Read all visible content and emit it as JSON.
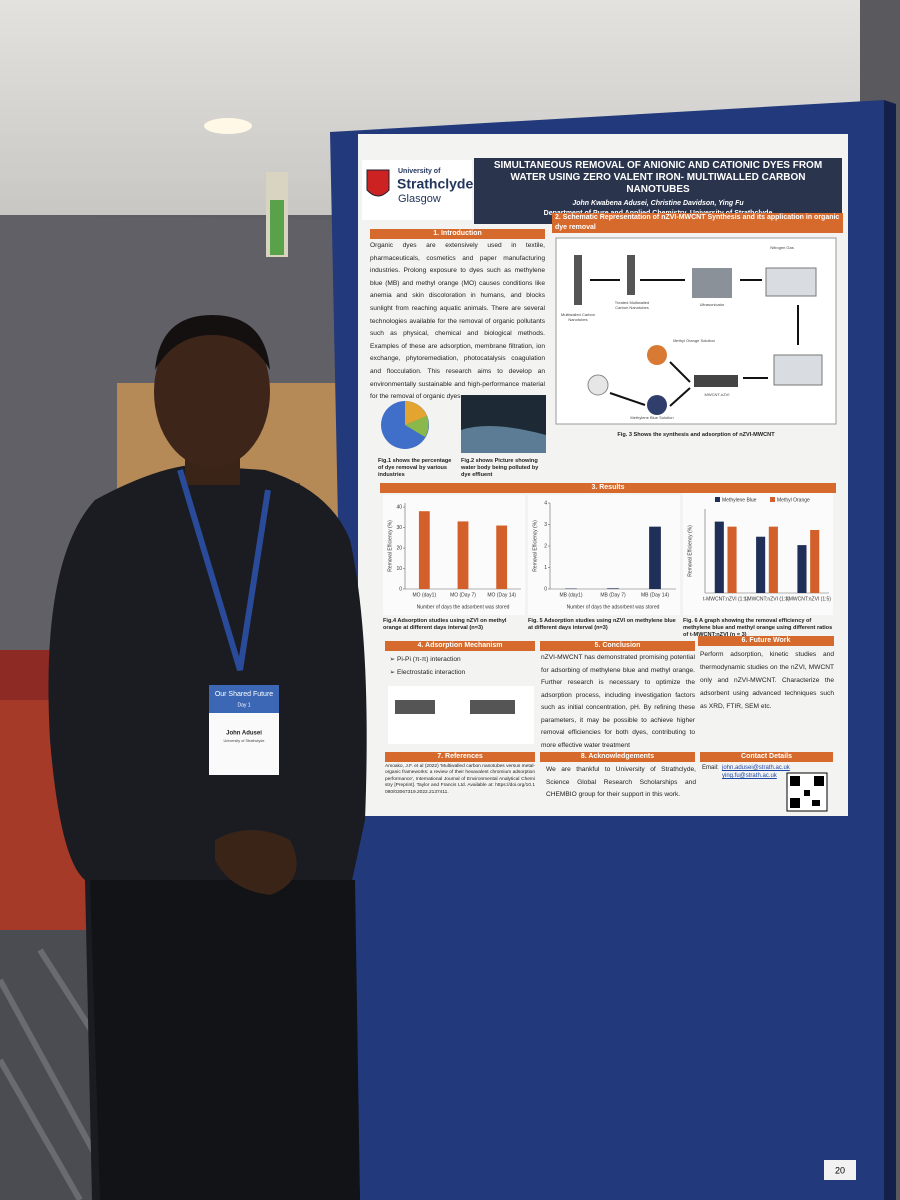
{
  "poster": {
    "university": [
      "University of",
      "Strathclyde",
      "Glasgow"
    ],
    "title": "SIMULTANEOUS REMOVAL OF ANIONIC AND CATIONIC DYES FROM WATER USING ZERO VALENT IRON- MULTIWALLED CARBON NANOTUBES",
    "authors": "John Kwabena Adusei, Christine Davidson, Ying Fu",
    "affiliation": "Department of Pure and Applied Chemistry, University of Strathclyde",
    "introduction": {
      "heading": "1. Introduction",
      "body": "Organic dyes are extensively used in textile, pharmaceuticals, cosmetics and paper manufacturing industries. Prolong exposure to dyes such as methylene blue (MB) and methyl orange (MO) causes conditions like anemia and skin discoloration in humans, and blocks sunlight from reaching aquatic animals. There are several technologies available for the removal of organic pollutants such as physical, chemical and biological methods. Examples of these are adsorption, membrane filtration, ion exchange, phytoremediation, photocatalysis coagulation and flocculation. This research aims to develop an environmentally sustainable and high-performance material for the removal of organic dyes",
      "fig1_caption": "Fig.1 shows the percentage of dye removal by various industries",
      "fig2_caption": "Fig.2 shows Picture showing water body being polluted by dye effluent"
    },
    "schematic": {
      "heading": "2. Schematic Representation of nZVI-MWCNT Synthesis and its application in organic dye removal",
      "labels": [
        "Multiwalled Carbon Nanotubes",
        "Treated Multiwalled Carbon Nanotubes",
        "Ultrasonicator",
        "Nitrogen Gas",
        "Methyl Orange Solution",
        "MWCNT-nZVI",
        "Methylene Blue Solution"
      ],
      "caption": "Fig. 3 Shows the synthesis and adsorption of nZVI-MWCNT"
    },
    "results": {
      "heading": "3. Results",
      "charts": [
        {
          "type": "bar",
          "ylabel": "Removal Efficiency (%)",
          "xlabel": "Number of days the adsorbent was stored",
          "categories": [
            "MO (day1)",
            "MO (Day 7)",
            "MO (Day 14)"
          ],
          "values": [
            38,
            33,
            31
          ],
          "color": "#d3602a",
          "ylim": [
            0,
            42
          ],
          "yticks": [
            0,
            10,
            20,
            30,
            40
          ],
          "caption": "Fig.4 Adsorption studies using nZVI on methyl orange at different days interval (n=3)"
        },
        {
          "type": "bar",
          "ylabel": "Removal Efficiency (%)",
          "xlabel": "Number of days the adsorbent was stored",
          "categories": [
            "MB (day1)",
            "MB (Day 7)",
            "MB (Day 14)"
          ],
          "values": [
            0.02,
            0.03,
            2.9
          ],
          "color": "#1f2f57",
          "ylim": [
            0,
            4
          ],
          "yticks": [
            0,
            1,
            2,
            3,
            4
          ],
          "caption": "Fig. 5 Adsorption studies using nZVI on methylene blue at different days interval (n=3)"
        },
        {
          "type": "bar",
          "ylabel": "Removal Efficiency (%)",
          "categories": [
            "t-MWCNT:nZVI (1:1)",
            "t-MWCNT:nZVI (1:3)",
            "t-MWCNT:nZVI (1:5)"
          ],
          "series": [
            {
              "name": "Methylene Blue",
              "color": "#1f2f57",
              "values": [
                85,
                67,
                57
              ]
            },
            {
              "name": "Methyl Orange",
              "color": "#d3602a",
              "values": [
                79,
                79,
                75
              ]
            }
          ],
          "ylim": [
            0,
            100
          ],
          "caption": "Fig. 6 A graph showing the removal efficiency of methylene blue and methyl orange using different ratios of t-MWCNT:nZVI (n = 3)"
        }
      ]
    },
    "mechanism": {
      "heading": "4. Adsorption Mechanism",
      "items": [
        "Pi-Pi (π-π) interaction",
        "Electrostatic interaction"
      ]
    },
    "conclusion": {
      "heading": "5. Conclusion",
      "body": "nZVI-MWCNT has demonstrated promising potential for adsorbing of methylene blue and methyl orange. Further research is necessary to optimize the adsorption process, including investigation factors such as initial concentration, pH. By refining these parameters, it may be possible to achieve higher removal efficiencies for both dyes, contributing to more effective water treatment"
    },
    "future_work": {
      "heading": "6. Future Work",
      "body": "Perform adsorption, kinetic studies and thermodynamic studies on the nZVI, MWCNT only and nZVI-MWCNT. Characterize the adsorbent using advanced techniques such as XRD, FTIR, SEM etc."
    },
    "references": {
      "heading": "7. References",
      "body": "Amoako, J.F. et al (2022) 'Multiwalled carbon nanotubes versus metal-organic frameworks: a review of their hexavalent chromium adsorption performance', International Journal of Environmental Analytical Chemistry [Preprint]. Taylor and Francis Ltd. Available at: https://doi.org/10.1080/03067319.2022.2137411."
    },
    "acknowledgements": {
      "heading": "8. Acknowledgements",
      "body": "We are thankful to University of Strathclyde, Science Global Research Scholarships and CHEMBIO group for their support in this work."
    },
    "contact": {
      "heading": "Contact Details",
      "email_label": "Email:",
      "emails": [
        "john.adusei@strath.ac.uk",
        "ying.fu@strath.ac.uk"
      ]
    }
  },
  "badge": {
    "event": "Our Shared Future",
    "day": "Day 1",
    "name": "John Adusei",
    "organisation": "University of Strathclyde"
  },
  "board_number": "20"
}
